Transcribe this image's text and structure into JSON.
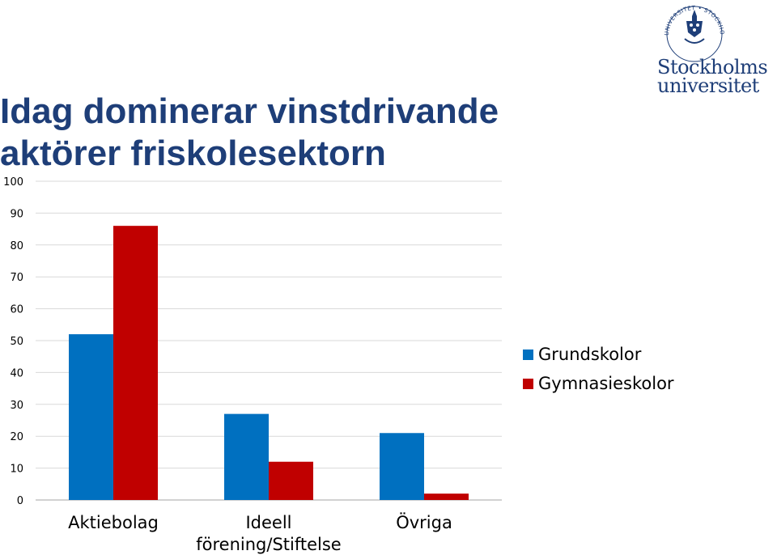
{
  "header": {
    "title_line1": "Idag dominerar vinstdrivande",
    "title_line2": "aktörer friskolesektorn"
  },
  "logo": {
    "name_line1": "Stockholms",
    "name_line2": "universitet",
    "seal_text": "UNIVERSITET • STOCKHOLMS"
  },
  "colors": {
    "title": "#1e3e78",
    "grundskolor": "#0070c0",
    "gymnasieskolor": "#c00000",
    "grid": "#d9d9d9"
  },
  "chart_data": {
    "type": "bar",
    "categories": [
      "Aktiebolag",
      "Ideell förening/Stiftelse",
      "Övriga"
    ],
    "series": [
      {
        "name": "Grundskolor",
        "values": [
          52,
          27,
          21
        ]
      },
      {
        "name": "Gymnasieskolor",
        "values": [
          86,
          12,
          2
        ]
      }
    ],
    "ylim": [
      0,
      100
    ],
    "yticks": [
      0,
      10,
      20,
      30,
      40,
      50,
      60,
      70,
      80,
      90,
      100
    ],
    "grid": true,
    "legend_position": "right"
  }
}
